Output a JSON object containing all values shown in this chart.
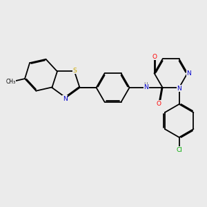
{
  "background_color": "#ebebeb",
  "atom_colors": {
    "N": "#0000cc",
    "O": "#ff0000",
    "S": "#ccaa00",
    "Cl": "#00aa00",
    "C": "#000000",
    "H": "#666666"
  },
  "figsize": [
    3.0,
    3.0
  ],
  "dpi": 100
}
